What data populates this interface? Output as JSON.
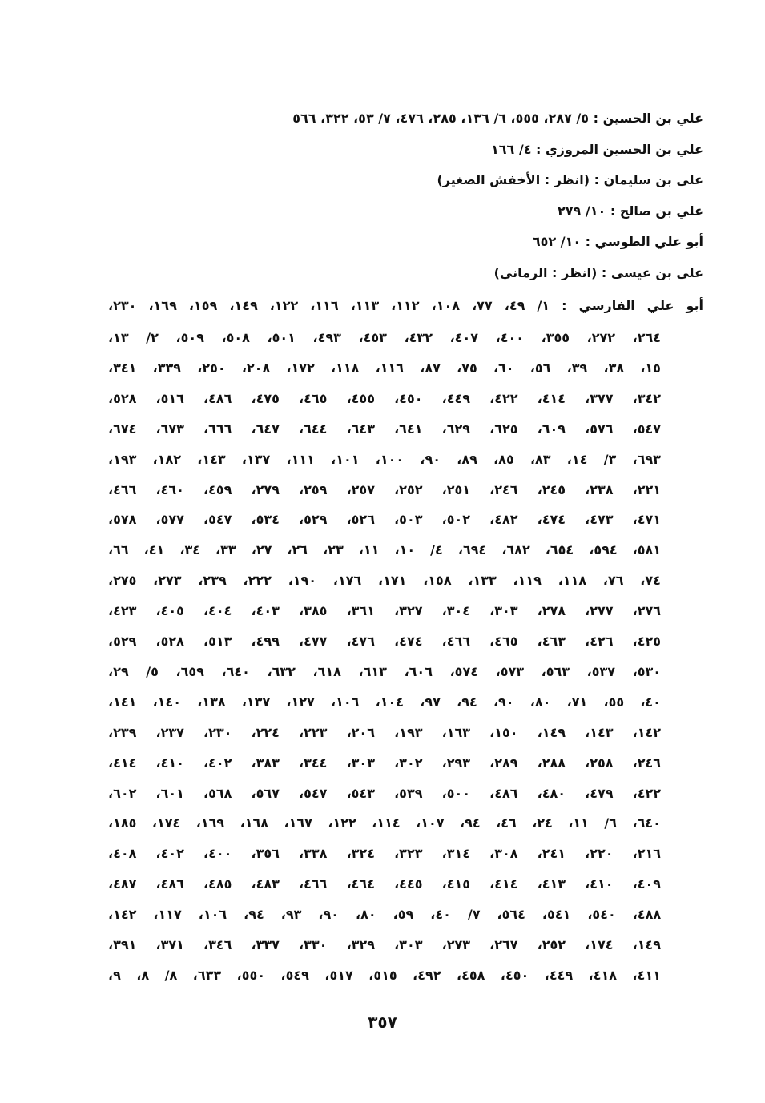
{
  "lines": [
    "علي بن الحسين : ٥/ ٢٨٧، ٥٥٥، ٦/ ١٣٦، ٢٨٥، ٤٧٦، ٧/ ٥٣، ٣٢٢، ٥٦٦",
    "علي بن الحسين المروزي : ٤/ ١٦٦",
    "علي بن سليمان : (انظر : الأخفش الصغير)",
    "علي بن صالح : ١٠/ ٢٧٩",
    "أبو علي الطوسي : ١٠/ ٦٥٢",
    "علي بن عيسى : (انظر : الرماني)",
    "أبو علي الفارسي : ١/ ٤٩، ٧٧، ١٠٨، ١١٢، ١١٣، ١١٦، ١٢٢، ١٤٩، ١٥٩، ١٦٩، ٢٣٠،",
    "٢٦٤، ٢٧٢، ٣٥٥، ٤٠٠، ٤٠٧، ٤٣٢، ٤٥٣، ٤٩٣، ٥٠١، ٥٠٨، ٥٠٩، ٢/ ١٣،",
    "١٥، ٣٨، ٣٩، ٥٦، ٦٠، ٧٥، ٨٧، ١١٦، ١١٨، ١٧٢، ٢٠٨، ٢٥٠، ٣٣٩، ٣٤١،",
    "٣٤٢، ٣٧٧، ٤١٤، ٤٢٢، ٤٤٩، ٤٥٠، ٤٥٥، ٤٦٥، ٤٧٥، ٤٨٦، ٥١٦، ٥٢٨،",
    "٥٤٧، ٥٧٦، ٦٠٩، ٦٢٥، ٦٢٩، ٦٤١، ٦٤٣، ٦٤٤، ٦٤٧، ٦٦٦، ٦٧٣، ٦٧٤،",
    "٦٩٣، ٣/ ١٤، ٨٣، ٨٥، ٨٩، ٩٠، ١٠٠، ١٠١، ١١١، ١٣٧، ١٤٣، ١٨٢، ١٩٣،",
    "٢٢١، ٢٣٨، ٢٤٥، ٢٤٦، ٢٥١، ٢٥٢، ٢٥٧، ٢٥٩، ٢٧٩، ٤٥٩، ٤٦٠، ٤٦٦،",
    "٤٧١، ٤٧٣، ٤٧٤، ٤٨٢، ٥٠٢، ٥٠٣، ٥٢٦، ٥٢٩، ٥٣٤، ٥٤٧، ٥٧٧، ٥٧٨،",
    "٥٨١، ٥٩٤، ٦٥٤، ٦٨٢، ٦٩٤، ٤/ ١٠، ١١، ٢٣، ٢٦، ٢٧، ٣٣، ٣٤، ٤١، ٦٦،",
    "٧٤، ٧٦، ١١٨، ١١٩، ١٣٣، ١٥٨، ١٧١، ١٧٦، ١٩٠، ٢٢٢، ٢٣٩، ٢٧٣، ٢٧٥،",
    "٢٧٦، ٢٧٧، ٢٧٨، ٣٠٣، ٣٠٤، ٣٢٧، ٣٦١، ٣٨٥، ٤٠٣، ٤٠٤، ٤٠٥، ٤٢٣،",
    "٤٢٥، ٤٢٦، ٤٦٣، ٤٦٥، ٤٦٦، ٤٧٤، ٤٧٦، ٤٧٧، ٤٩٩، ٥١٣، ٥٢٨، ٥٢٩،",
    "٥٣٠، ٥٣٧، ٥٦٣، ٥٧٣، ٥٧٤، ٦٠٦، ٦١٣، ٦١٨، ٦٣٢، ٦٤٠، ٦٥٩، ٥/ ٢٩،",
    "٤٠، ٥٥، ٧١، ٨٠، ٩٠، ٩٤، ٩٧، ١٠٤، ١٠٦، ١٢٧، ١٣٧، ١٣٨، ١٤٠، ١٤١،",
    "١٤٢، ١٤٣، ١٤٩، ١٥٠، ١٦٣، ١٩٣، ٢٠٦، ٢٢٣، ٢٢٤، ٢٣٠، ٢٣٧، ٢٣٩،",
    "٢٤٦، ٢٥٨، ٢٨٨، ٢٨٩، ٢٩٣، ٣٠٢، ٣٠٣، ٣٤٤، ٣٨٣، ٤٠٢، ٤١٠، ٤١٤،",
    "٤٢٢، ٤٧٩، ٤٨٠، ٤٨٦، ٥٠٠، ٥٣٩، ٥٤٣، ٥٤٧، ٥٦٧، ٥٦٨، ٦٠١، ٦٠٢،",
    "٦٤٠، ٦/ ١١، ٢٤، ٤٦، ٩٤، ١٠٧، ١١٤، ١٢٢، ١٦٧، ١٦٨، ١٦٩، ١٧٤، ١٨٥،",
    "٢١٦، ٢٢٠، ٢٤١، ٣٠٨، ٣١٤، ٣٢٣، ٣٢٤، ٣٣٨، ٣٥٦، ٤٠٠، ٤٠٢، ٤٠٨،",
    "٤٠٩، ٤١٠، ٤١٣، ٤١٤، ٤١٥، ٤٤٥، ٤٦٤، ٤٦٦، ٤٨٣، ٤٨٥، ٤٨٦، ٤٨٧،",
    "٤٨٨، ٥٤٠، ٥٤١، ٥٦٤، ٧/ ٤٠، ٥٩، ٨٠، ٩٠، ٩٣، ٩٤، ١٠٦، ١١٧، ١٤٢،",
    "١٤٩، ١٧٤، ٢٥٢، ٢٦٧، ٢٧٣، ٣٠٣، ٣٢٩، ٣٣٠، ٣٣٧، ٣٤٦، ٣٧١، ٣٩١،",
    "٤١١، ٤١٨، ٤٤٩، ٤٥٠، ٤٥٨، ٤٩٢، ٥١٥، ٥١٧، ٥٤٩، ٥٥٠، ٦٣٣، ٨/ ٨، ٩،"
  ],
  "page_number": "٣٥٧"
}
